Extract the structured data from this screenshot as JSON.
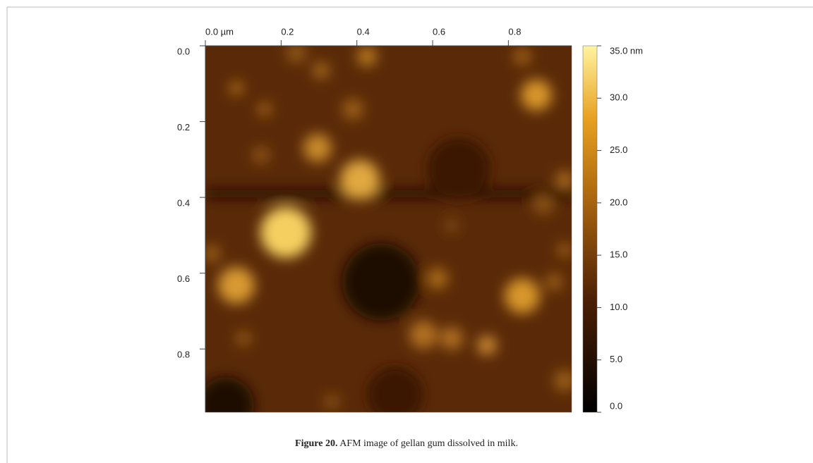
{
  "figure": {
    "x_axis": {
      "lim": [
        0,
        0.967
      ],
      "ticks": [
        {
          "value": 0,
          "label": "0.0 µm"
        },
        0.2,
        0.4,
        0.6,
        0.8
      ]
    },
    "y_axis": {
      "lim": [
        0,
        0.967
      ],
      "ticks": [
        {
          "value": 0,
          "label": "0.0"
        },
        0.2,
        0.4,
        0.6,
        0.8
      ]
    },
    "colorbar": {
      "lim": [
        0,
        35
      ],
      "ticks": [
        {
          "value": 35,
          "label": "35.0 nm"
        },
        {
          "value": 30,
          "label": "30.0"
        },
        {
          "value": 25,
          "label": "25.0"
        },
        {
          "value": 20,
          "label": "20.0"
        },
        {
          "value": 15,
          "label": "15.0"
        },
        {
          "value": 10,
          "label": "10.0"
        },
        {
          "value": 5,
          "label": "5.0"
        },
        {
          "value": 0,
          "label": "0.0"
        }
      ]
    },
    "caption": {
      "label": "Figure 20.",
      "text": "AFM image of gellan gum dissolved in milk."
    }
  }
}
